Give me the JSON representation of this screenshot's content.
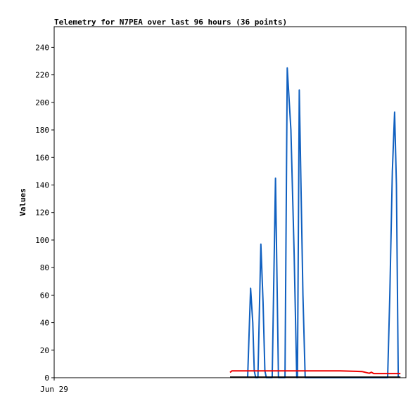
{
  "chart_data": {
    "type": "line",
    "title": "Telemetry for N7PEA over last 96 hours (36 points)",
    "xlabel": "",
    "ylabel": "Values",
    "ylim": [
      0,
      255
    ],
    "yticks": [
      0,
      20,
      40,
      60,
      80,
      100,
      120,
      140,
      160,
      180,
      200,
      220,
      240
    ],
    "xlim": [
      0,
      96
    ],
    "xticks": [
      {
        "x": 0,
        "label": "Jun 29"
      }
    ],
    "grid": false,
    "legend": "none",
    "series": [
      {
        "color": "#1060c0",
        "points": [
          [
            52.8,
            0
          ],
          [
            53.6,
            65
          ],
          [
            54.2,
            40
          ],
          [
            54.6,
            5
          ],
          [
            55.0,
            0
          ],
          [
            55.6,
            0
          ],
          [
            56.4,
            97
          ],
          [
            57.0,
            55
          ],
          [
            57.5,
            5
          ],
          [
            57.9,
            0
          ],
          [
            59.5,
            0
          ],
          [
            60.4,
            145
          ],
          [
            61.2,
            0
          ],
          [
            63.0,
            0
          ],
          [
            63.6,
            225
          ],
          [
            64.6,
            180
          ],
          [
            65.5,
            90
          ],
          [
            66.2,
            0
          ],
          [
            66.4,
            0
          ],
          [
            66.9,
            209
          ],
          [
            67.9,
            60
          ],
          [
            68.5,
            0
          ],
          [
            91.0,
            0
          ],
          [
            91.6,
            60
          ],
          [
            92.3,
            150
          ],
          [
            92.9,
            193
          ],
          [
            93.4,
            140
          ],
          [
            93.9,
            0
          ]
        ]
      },
      {
        "color": "#ee0000",
        "points": [
          [
            48.0,
            3.8
          ],
          [
            48.5,
            5
          ],
          [
            60,
            5
          ],
          [
            70,
            5
          ],
          [
            78,
            5
          ],
          [
            84,
            4.5
          ],
          [
            86,
            3.2
          ],
          [
            86.6,
            4.0
          ],
          [
            87.2,
            3.0
          ],
          [
            92,
            3.0
          ],
          [
            94.5,
            3.0
          ]
        ]
      },
      {
        "color": "#000000",
        "points": [
          [
            48.0,
            0.4
          ],
          [
            94.5,
            0.4
          ]
        ]
      }
    ]
  }
}
